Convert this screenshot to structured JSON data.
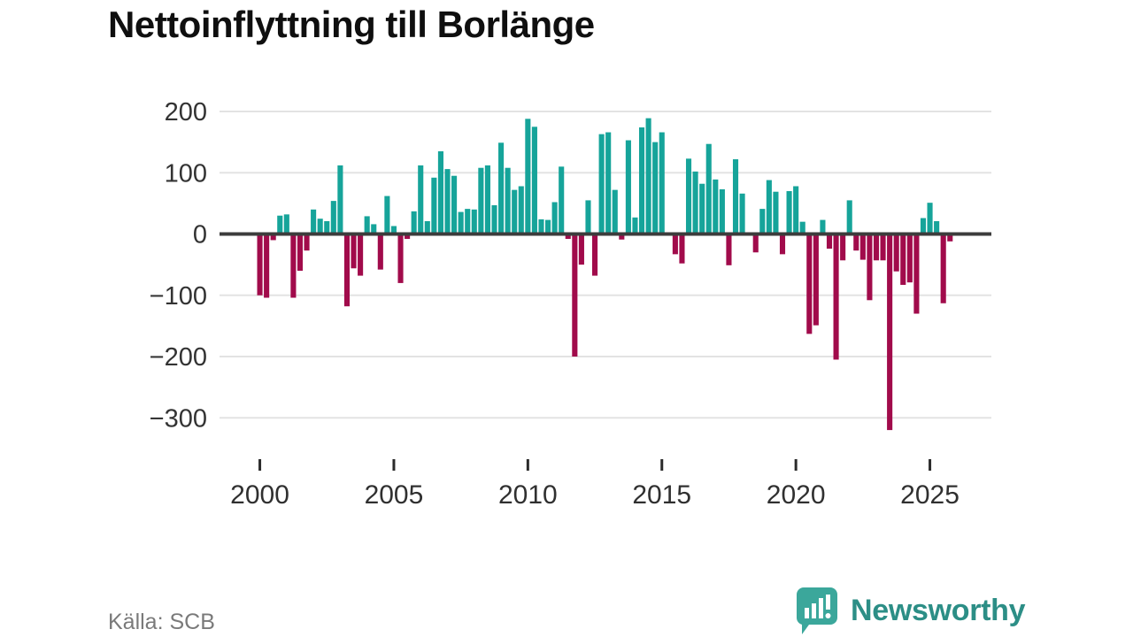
{
  "header": {
    "title": "Nettoinflyttning till Borlänge"
  },
  "footer": {
    "source_label": "Källa: SCB",
    "brand_name": "Newsworthy"
  },
  "colors": {
    "positive_bar": "#16a49a",
    "negative_bar": "#a10b4b",
    "zero_line": "#3c3c3c",
    "gridline": "#e3e3e3",
    "axis_text": "#333333",
    "title_text": "#0f0f0f",
    "source_text": "#7a7a7a",
    "brand_teal": "#3ba79b",
    "brand_text": "#2c8e86"
  },
  "chart_data": {
    "type": "bar",
    "title": "Nettoinflyttning till Borlänge",
    "frequency": "quarterly",
    "start": "2000-Q1",
    "end": "2025-Q4",
    "grid": true,
    "legend": "none",
    "x_tick_years": [
      2000,
      2005,
      2010,
      2015,
      2020,
      2025
    ],
    "y_ticks": [
      200,
      100,
      0,
      -100,
      -200,
      -300
    ],
    "ylim": [
      -340,
      210
    ],
    "bar_colors": {
      "positive": "#16a49a",
      "negative": "#a10b4b"
    },
    "values_by_year": [
      {
        "year": 2000,
        "q": [
          -100,
          -104,
          -10,
          30
        ]
      },
      {
        "year": 2001,
        "q": [
          32,
          -104,
          -60,
          -27
        ]
      },
      {
        "year": 2002,
        "q": [
          40,
          25,
          21,
          54
        ]
      },
      {
        "year": 2003,
        "q": [
          112,
          -118,
          -56,
          -68
        ]
      },
      {
        "year": 2004,
        "q": [
          29,
          16,
          -58,
          62
        ]
      },
      {
        "year": 2005,
        "q": [
          13,
          -80,
          -8,
          37
        ]
      },
      {
        "year": 2006,
        "q": [
          112,
          21,
          92,
          135
        ]
      },
      {
        "year": 2007,
        "q": [
          106,
          95,
          36,
          41
        ]
      },
      {
        "year": 2008,
        "q": [
          40,
          108,
          112,
          47
        ]
      },
      {
        "year": 2009,
        "q": [
          149,
          108,
          72,
          78
        ]
      },
      {
        "year": 2010,
        "q": [
          188,
          175,
          24,
          23
        ]
      },
      {
        "year": 2011,
        "q": [
          52,
          110,
          -8,
          -200
        ]
      },
      {
        "year": 2012,
        "q": [
          -50,
          55,
          -68,
          163
        ]
      },
      {
        "year": 2013,
        "q": [
          166,
          72,
          -9,
          153
        ]
      },
      {
        "year": 2014,
        "q": [
          27,
          174,
          189,
          150
        ]
      },
      {
        "year": 2015,
        "q": [
          166,
          0,
          -33,
          -48
        ]
      },
      {
        "year": 2016,
        "q": [
          123,
          102,
          82,
          147
        ]
      },
      {
        "year": 2017,
        "q": [
          89,
          73,
          -51,
          122
        ]
      },
      {
        "year": 2018,
        "q": [
          66,
          0,
          -30,
          41
        ]
      },
      {
        "year": 2019,
        "q": [
          88,
          69,
          -33,
          70
        ]
      },
      {
        "year": 2020,
        "q": [
          78,
          20,
          -163,
          -149
        ]
      },
      {
        "year": 2021,
        "q": [
          23,
          -24,
          -205,
          -43
        ]
      },
      {
        "year": 2022,
        "q": [
          55,
          -27,
          -42,
          -108
        ]
      },
      {
        "year": 2023,
        "q": [
          -43,
          -43,
          -320,
          -61
        ]
      },
      {
        "year": 2024,
        "q": [
          -83,
          -79,
          -130,
          26
        ]
      },
      {
        "year": 2025,
        "q": [
          51,
          21,
          -113,
          -12
        ]
      }
    ]
  }
}
